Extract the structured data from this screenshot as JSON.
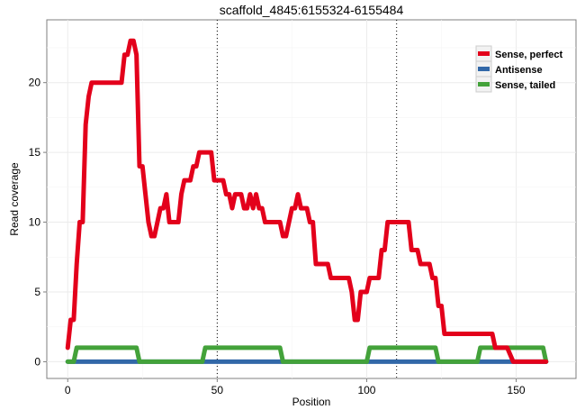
{
  "chart_data": {
    "type": "line",
    "title": "scaffold_4845:6155324-6155484",
    "xlabel": "Position",
    "ylabel": "Read coverage",
    "xlim": [
      -7,
      170
    ],
    "ylim": [
      -1.2,
      24.5
    ],
    "xticks": [
      0,
      50,
      100,
      150
    ],
    "yticks": [
      0,
      5,
      10,
      15,
      20
    ],
    "vlines": [
      50,
      110
    ],
    "grid": true,
    "legend_position": "top-right",
    "series": [
      {
        "name": "Sense, perfect",
        "color": "#e3001b",
        "points": [
          [
            0,
            1
          ],
          [
            1,
            3
          ],
          [
            2,
            3
          ],
          [
            3,
            7
          ],
          [
            4,
            10
          ],
          [
            5,
            10
          ],
          [
            6,
            17
          ],
          [
            7,
            19
          ],
          [
            8,
            20
          ],
          [
            18,
            20
          ],
          [
            19,
            22
          ],
          [
            20,
            22
          ],
          [
            21,
            23
          ],
          [
            22,
            23
          ],
          [
            23,
            22
          ],
          [
            24,
            14
          ],
          [
            25,
            14
          ],
          [
            26,
            12
          ],
          [
            27,
            10
          ],
          [
            28,
            9
          ],
          [
            29,
            9
          ],
          [
            30,
            10
          ],
          [
            31,
            11
          ],
          [
            32,
            11
          ],
          [
            33,
            12
          ],
          [
            34,
            10
          ],
          [
            37,
            10
          ],
          [
            38,
            12
          ],
          [
            39,
            13
          ],
          [
            41,
            13
          ],
          [
            42,
            14
          ],
          [
            43,
            14
          ],
          [
            44,
            15
          ],
          [
            48,
            15
          ],
          [
            49,
            13
          ],
          [
            52,
            13
          ],
          [
            53,
            12
          ],
          [
            54,
            12
          ],
          [
            55,
            11
          ],
          [
            56,
            12
          ],
          [
            58,
            12
          ],
          [
            59,
            11
          ],
          [
            60,
            11
          ],
          [
            61,
            12
          ],
          [
            62,
            11
          ],
          [
            63,
            12
          ],
          [
            64,
            11
          ],
          [
            65,
            11
          ],
          [
            66,
            10
          ],
          [
            71,
            10
          ],
          [
            72,
            9
          ],
          [
            73,
            9
          ],
          [
            74,
            10
          ],
          [
            75,
            11
          ],
          [
            76,
            11
          ],
          [
            77,
            12
          ],
          [
            78,
            11
          ],
          [
            80,
            11
          ],
          [
            81,
            10
          ],
          [
            82,
            10
          ],
          [
            83,
            7
          ],
          [
            87,
            7
          ],
          [
            88,
            6
          ],
          [
            94,
            6
          ],
          [
            95,
            5
          ],
          [
            96,
            3
          ],
          [
            97,
            3
          ],
          [
            98,
            5
          ],
          [
            100,
            5
          ],
          [
            101,
            6
          ],
          [
            104,
            6
          ],
          [
            105,
            8
          ],
          [
            106,
            8
          ],
          [
            107,
            10
          ],
          [
            114,
            10
          ],
          [
            115,
            8
          ],
          [
            117,
            8
          ],
          [
            118,
            7
          ],
          [
            121,
            7
          ],
          [
            122,
            6
          ],
          [
            123,
            6
          ],
          [
            124,
            4
          ],
          [
            125,
            4
          ],
          [
            126,
            2
          ],
          [
            142,
            2
          ],
          [
            143,
            1
          ],
          [
            147,
            1
          ],
          [
            149,
            0
          ],
          [
            160,
            0
          ]
        ]
      },
      {
        "name": "Antisense",
        "color": "#3268a8",
        "points": [
          [
            0,
            0
          ],
          [
            160,
            0
          ]
        ]
      },
      {
        "name": "Sense, tailed",
        "color": "#43a23a",
        "points": [
          [
            0,
            0
          ],
          [
            2,
            0
          ],
          [
            3,
            1
          ],
          [
            23,
            1
          ],
          [
            24,
            0
          ],
          [
            45,
            0
          ],
          [
            46,
            1
          ],
          [
            71,
            1
          ],
          [
            72,
            0
          ],
          [
            100,
            0
          ],
          [
            101,
            1
          ],
          [
            123,
            1
          ],
          [
            124,
            0
          ],
          [
            137,
            0
          ],
          [
            138,
            1
          ],
          [
            159,
            1
          ],
          [
            160,
            0
          ]
        ]
      }
    ]
  }
}
